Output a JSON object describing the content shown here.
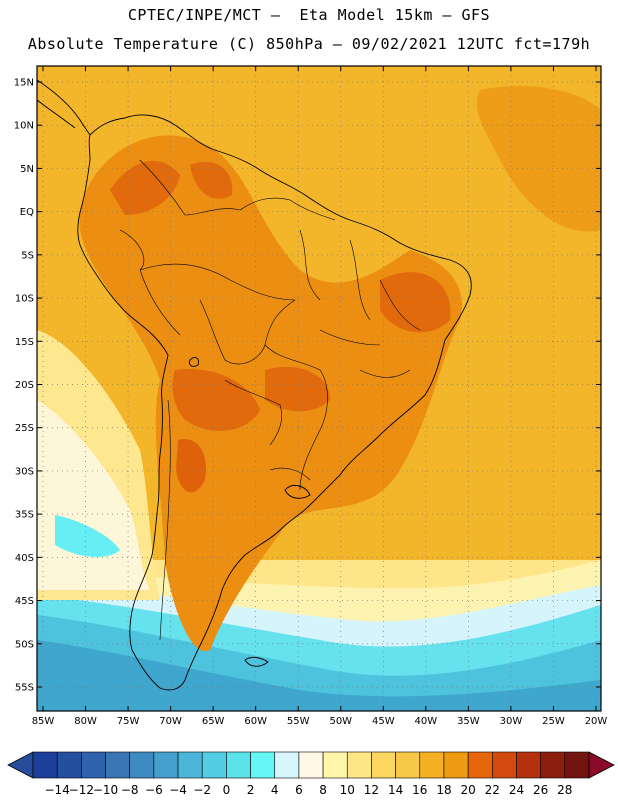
{
  "header": {
    "line1": "CPTEC/INPE/MCT –  Eta Model 15km – GFS",
    "line2": "Absolute Temperature (C) 850hPa – 09/02/2021 12UTC fct=179h"
  },
  "map": {
    "region": "South America",
    "lat_labels": [
      "15N",
      "10N",
      "5N",
      "EQ",
      "5S",
      "10S",
      "15S",
      "20S",
      "25S",
      "30S",
      "35S",
      "40S",
      "45S",
      "50S",
      "55S"
    ],
    "lon_labels": [
      "85W",
      "80W",
      "75W",
      "70W",
      "65W",
      "60W",
      "55W",
      "50W",
      "45W",
      "40W",
      "35W",
      "30W",
      "25W",
      "20W"
    ]
  },
  "colorbar": {
    "labels": [
      "-14",
      "-12",
      "-10",
      "-8",
      "-6",
      "-4",
      "-2",
      "0",
      "2",
      "4",
      "6",
      "8",
      "10",
      "12",
      "14",
      "16",
      "18",
      "20",
      "22",
      "24",
      "26",
      "28"
    ],
    "colors": [
      "#1c3f9a",
      "#244f9f",
      "#2f62aa",
      "#3a76b6",
      "#3f8ac1",
      "#46a0cd",
      "#4cb6d9",
      "#52cde3",
      "#5ce3ea",
      "#66f6f6",
      "#d6f6fb",
      "#fff8e6",
      "#fef6a8",
      "#fde685",
      "#fbd760",
      "#f7c848",
      "#f4b022",
      "#ef9b12",
      "#e6670b",
      "#d24a0e",
      "#b5300c",
      "#8c1e0e",
      "#741410"
    ],
    "under_color": "#264c9a",
    "over_color": "#8b0a2a"
  }
}
